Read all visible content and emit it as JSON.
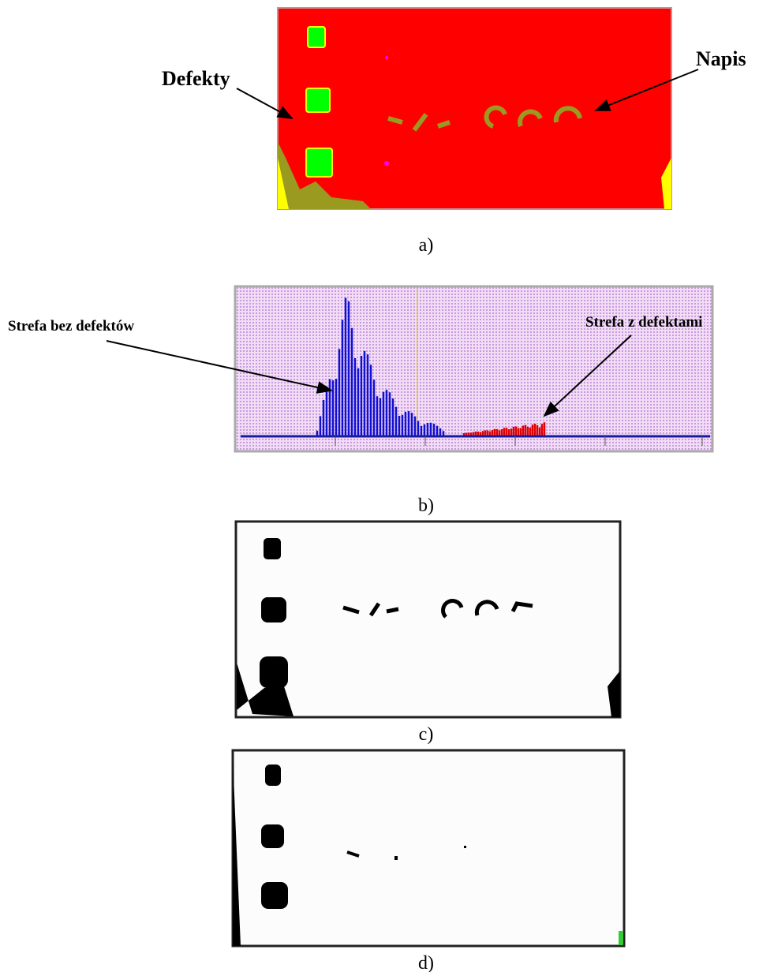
{
  "panels": [
    {
      "label": "a)",
      "annotations": [
        "Defekty",
        "Napis"
      ]
    },
    {
      "label": "b)",
      "annotations": [
        "Strefa bez defektów",
        "Strefa z defektami"
      ]
    },
    {
      "label": "c)"
    },
    {
      "label": "d)"
    }
  ]
}
